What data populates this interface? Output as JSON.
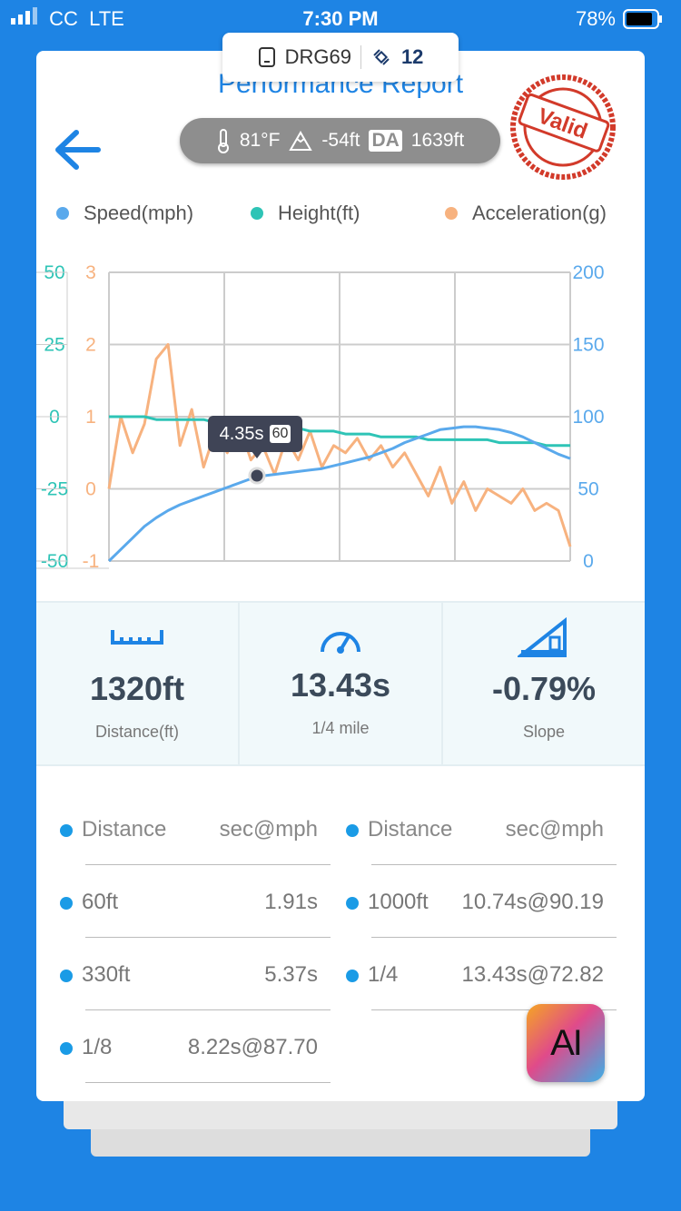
{
  "status_bar": {
    "carrier": "CC",
    "network": "LTE",
    "time": "7:30 PM",
    "battery": "78%"
  },
  "device": {
    "name": "DRG69",
    "satellites": "12"
  },
  "header": {
    "title": "Performance Report",
    "temperature": "81°F",
    "elevation": "-54ft",
    "da_badge": "DA",
    "density_altitude": "1639ft",
    "stamp": "Valid"
  },
  "chart_data": {
    "type": "line",
    "series": [
      {
        "name": "Speed(mph)",
        "color": "#5aa9ec",
        "axis": "y2",
        "values": [
          0,
          8,
          16,
          24,
          30,
          35,
          39,
          42,
          45,
          48,
          51,
          54,
          57,
          59,
          60,
          61,
          62,
          63,
          64,
          66,
          68,
          70,
          72,
          75,
          78,
          82,
          85,
          88,
          91,
          92,
          93,
          93,
          92,
          91,
          89,
          86,
          82,
          78,
          74,
          71
        ]
      },
      {
        "name": "Height(ft)",
        "color": "#2ec4b6",
        "values": [
          0,
          0,
          0,
          0,
          -1,
          -1,
          -1,
          -1,
          -1,
          -2,
          -2,
          -2,
          -2,
          -3,
          -3,
          -4,
          -4,
          -5,
          -5,
          -5,
          -6,
          -6,
          -6,
          -7,
          -7,
          -7,
          -7,
          -8,
          -8,
          -8,
          -8,
          -8,
          -8,
          -9,
          -9,
          -9,
          -9,
          -10,
          -10,
          -10
        ]
      },
      {
        "name": "Acceleration(g)",
        "color": "#f7b27f",
        "axis": "y3",
        "values": [
          0.0,
          1.0,
          0.5,
          0.9,
          1.8,
          2.0,
          0.6,
          1.1,
          0.3,
          0.8,
          0.5,
          0.9,
          0.4,
          0.6,
          0.2,
          0.7,
          0.4,
          0.8,
          0.3,
          0.6,
          0.5,
          0.7,
          0.4,
          0.6,
          0.3,
          0.5,
          0.2,
          -0.1,
          0.3,
          -0.2,
          0.1,
          -0.3,
          0.0,
          -0.1,
          -0.2,
          0.0,
          -0.3,
          -0.2,
          -0.3,
          -0.8
        ]
      }
    ],
    "ylim": [
      -50,
      50
    ],
    "yticks": [
      -50,
      -25,
      0,
      25,
      50
    ],
    "ycolor": "#2ec4b6",
    "y3lim": [
      -1,
      3
    ],
    "y3ticks": [
      -1,
      0,
      1,
      2,
      3
    ],
    "y3color": "#f7b27f",
    "y2lim": [
      0,
      200
    ],
    "y2ticks": [
      0,
      50,
      100,
      150,
      200
    ],
    "y2color": "#5aa9ec",
    "grid": true
  },
  "tooltip": {
    "time": "4.35s",
    "speed": "60"
  },
  "stats": [
    {
      "value": "1320ft",
      "label": "Distance(ft)"
    },
    {
      "value": "13.43s",
      "label": "1/4 mile"
    },
    {
      "value": "-0.79%",
      "label": "Slope"
    }
  ],
  "splits": {
    "columns": [
      {
        "header": [
          "Distance",
          "sec@mph"
        ],
        "rows": [
          [
            "60ft",
            "1.91s"
          ],
          [
            "330ft",
            "5.37s"
          ],
          [
            "1/8",
            "8.22s@87.70"
          ]
        ]
      },
      {
        "header": [
          "Distance",
          "sec@mph"
        ],
        "rows": [
          [
            "1000ft",
            "10.74s@90.19"
          ],
          [
            "1/4",
            "13.43s@72.82"
          ]
        ]
      }
    ]
  },
  "app_icon": "AI"
}
